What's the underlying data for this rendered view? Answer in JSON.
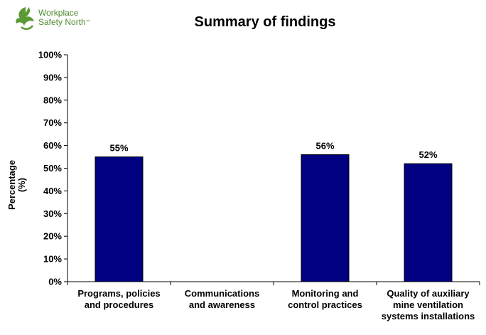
{
  "logo": {
    "line1": "Workplace",
    "line2": "Safety North",
    "tm": "™",
    "icon": "leaf-swirl-logo-icon"
  },
  "chart_data": {
    "type": "bar",
    "title": "Summary of findings",
    "ylabel": "Percentage",
    "ylabel_unit": "(%)",
    "xlabel": "",
    "categories": [
      "Programs, policies\nand procedures",
      "Communications\nand awareness",
      "Monitoring and\ncontrol practices",
      "Quality of auxiliary\nmine ventilation\nsystems installations"
    ],
    "values": [
      55,
      null,
      56,
      52
    ],
    "data_labels": [
      "55%",
      "",
      "56%",
      "52%"
    ],
    "ylim": [
      0,
      100
    ],
    "yticks": [
      "0%",
      "10%",
      "20%",
      "30%",
      "40%",
      "50%",
      "60%",
      "70%",
      "80%",
      "90%",
      "100%"
    ],
    "bar_color": "#000080",
    "grid": false,
    "legend": "none"
  }
}
